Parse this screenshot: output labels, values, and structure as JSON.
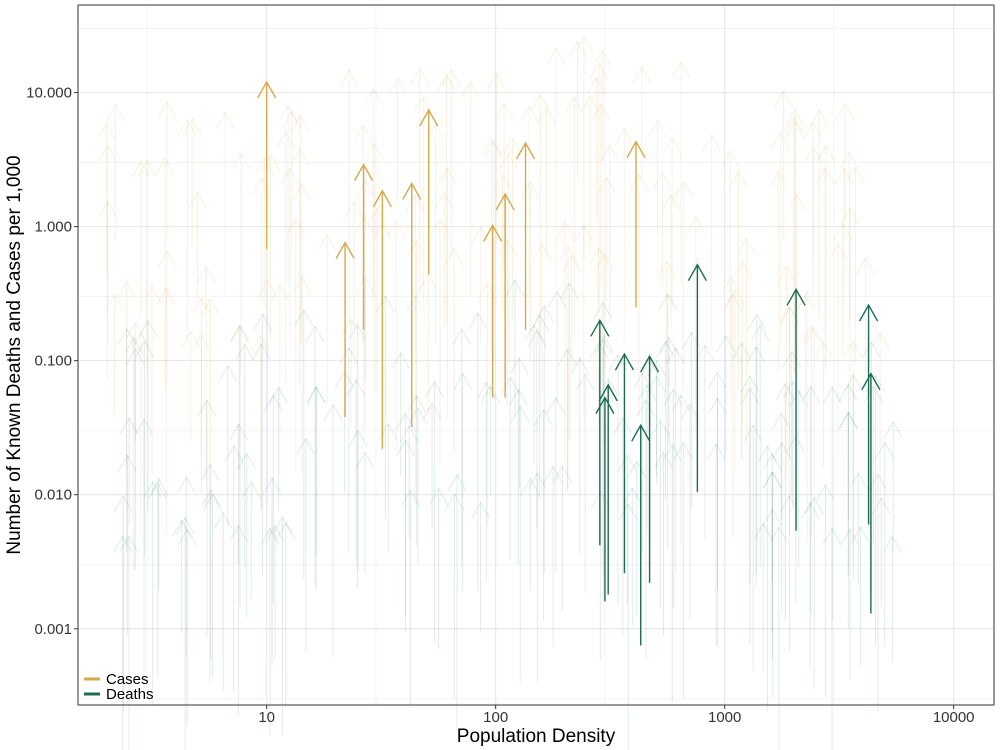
{
  "chart_data": {
    "type": "scatter",
    "mark": "arrow",
    "xlabel": "Population Density",
    "ylabel": "Number of Known Deaths and Cases per 1,000",
    "x_scale": "log",
    "y_scale": "log",
    "xlim": [
      1.5,
      15000
    ],
    "ylim": [
      0.00027,
      45
    ],
    "x_ticks": [
      {
        "value": 10,
        "label": "10"
      },
      {
        "value": 100,
        "label": "100"
      },
      {
        "value": 1000,
        "label": "1000"
      },
      {
        "value": 10000,
        "label": "10000"
      }
    ],
    "y_ticks": [
      {
        "value": 0.001,
        "label": "0.001"
      },
      {
        "value": 0.01,
        "label": "0.010"
      },
      {
        "value": 0.1,
        "label": "0.100"
      },
      {
        "value": 1,
        "label": "1.000"
      },
      {
        "value": 10,
        "label": "10.000"
      }
    ],
    "grid": true,
    "legend_position": "bottom-left",
    "colors": {
      "cases": "#D4A84B",
      "deaths": "#1B6B50"
    },
    "series": [
      {
        "name": "Cases",
        "color": "#D4A84B",
        "highlighted_arrows": [
          {
            "x": 10,
            "y_start": 0.68,
            "y_end": 12
          },
          {
            "x": 22,
            "y_start": 0.038,
            "y_end": 0.76
          },
          {
            "x": 26.5,
            "y_start": 0.17,
            "y_end": 2.9
          },
          {
            "x": 32,
            "y_start": 0.022,
            "y_end": 1.85
          },
          {
            "x": 43,
            "y_start": 0.032,
            "y_end": 2.1
          },
          {
            "x": 51,
            "y_start": 0.44,
            "y_end": 7.4
          },
          {
            "x": 97,
            "y_start": 0.053,
            "y_end": 1.02
          },
          {
            "x": 110,
            "y_start": 0.053,
            "y_end": 1.75
          },
          {
            "x": 135,
            "y_start": 0.17,
            "y_end": 4.2
          },
          {
            "x": 410,
            "y_start": 0.25,
            "y_end": 4.3
          }
        ]
      },
      {
        "name": "Deaths",
        "color": "#1B6B50",
        "highlighted_arrows": [
          {
            "x": 285,
            "y_start": 0.0042,
            "y_end": 0.2
          },
          {
            "x": 300,
            "y_start": 0.0016,
            "y_end": 0.053
          },
          {
            "x": 310,
            "y_start": 0.0018,
            "y_end": 0.066
          },
          {
            "x": 365,
            "y_start": 0.0026,
            "y_end": 0.112
          },
          {
            "x": 430,
            "y_start": 0.00075,
            "y_end": 0.033
          },
          {
            "x": 470,
            "y_start": 0.0022,
            "y_end": 0.108
          },
          {
            "x": 760,
            "y_start": 0.0105,
            "y_end": 0.52
          },
          {
            "x": 2050,
            "y_start": 0.0054,
            "y_end": 0.34
          },
          {
            "x": 4250,
            "y_start": 0.006,
            "y_end": 0.26
          },
          {
            "x": 4350,
            "y_start": 0.0013,
            "y_end": 0.08
          }
        ]
      }
    ]
  }
}
